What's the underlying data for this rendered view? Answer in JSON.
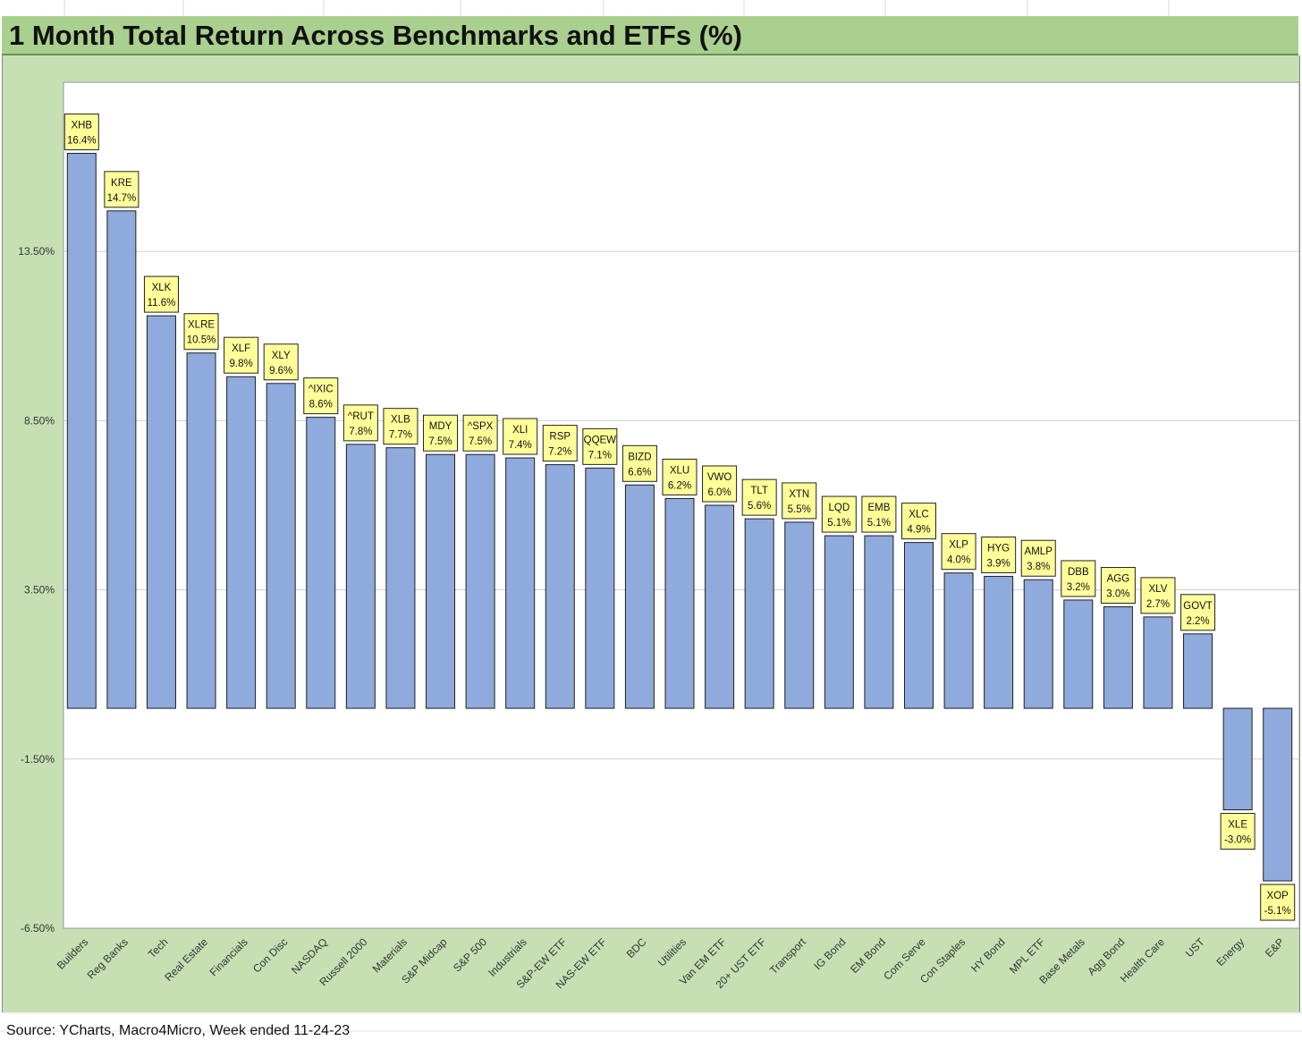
{
  "title": "1 Month Total Return Across Benchmarks and ETFs (%)",
  "source": "Source: YCharts, Macro4Micro, Week ended 11-24-23",
  "colors": {
    "title_band": "#a9d08e",
    "frame": "#c6e0b4",
    "plot_bg": "#ffffff",
    "bar_fill": "#8faadc",
    "bar_stroke": "#1f1f1f",
    "label_fill": "#ffff99"
  },
  "chart_data": {
    "type": "bar",
    "title": "1 Month Total Return Across Benchmarks and ETFs (%)",
    "xlabel": "",
    "ylabel": "",
    "ylim": [
      -6.5,
      18.5
    ],
    "yticks": [
      "13.50%",
      "8.50%",
      "3.50%",
      "-1.50%",
      "-6.50%"
    ],
    "ytick_values": [
      13.5,
      8.5,
      3.5,
      -1.5,
      -6.5
    ],
    "grid": true,
    "categories": [
      "Builders",
      "Reg Banks",
      "Tech",
      "Real Estate",
      "Financials",
      "Con Disc",
      "NASDAQ",
      "Russell 2000",
      "Materials",
      "S&P Midcap",
      "S&P 500",
      "Industrials",
      "S&P-EW ETF",
      "NAS-EW ETF",
      "BDC",
      "Utilities",
      "Van EM ETF",
      "20+ UST ETF",
      "Transport",
      "IG Bond",
      "EM Bond",
      "Com Serve",
      "Con Staples",
      "HY Bond",
      "MPL ETF",
      "Base Metals",
      "Agg Bond",
      "Health Care",
      "UST",
      "Energy",
      "E&P"
    ],
    "tickers": [
      "XHB",
      "KRE",
      "XLK",
      "XLRE",
      "XLF",
      "XLY",
      "^IXIC",
      "^RUT",
      "XLB",
      "MDY",
      "^SPX",
      "XLI",
      "RSP",
      "QQEW",
      "BIZD",
      "XLU",
      "VWO",
      "TLT",
      "XTN",
      "LQD",
      "EMB",
      "XLC",
      "XLP",
      "HYG",
      "AMLP",
      "DBB",
      "AGG",
      "XLV",
      "GOVT",
      "XLE",
      "XOP"
    ],
    "labels": [
      "16.4%",
      "14.7%",
      "11.6%",
      "10.5%",
      "9.8%",
      "9.6%",
      "8.6%",
      "7.8%",
      "7.7%",
      "7.5%",
      "7.5%",
      "7.4%",
      "7.2%",
      "7.1%",
      "6.6%",
      "6.2%",
      "6.0%",
      "5.6%",
      "5.5%",
      "5.1%",
      "5.1%",
      "4.9%",
      "4.0%",
      "3.9%",
      "3.8%",
      "3.2%",
      "3.0%",
      "2.7%",
      "2.2%",
      "-3.0%",
      "-5.1%"
    ],
    "values": [
      16.4,
      14.7,
      11.6,
      10.5,
      9.8,
      9.6,
      8.6,
      7.8,
      7.7,
      7.5,
      7.5,
      7.4,
      7.2,
      7.1,
      6.6,
      6.2,
      6.0,
      5.6,
      5.5,
      5.1,
      5.1,
      4.9,
      4.0,
      3.9,
      3.8,
      3.2,
      3.0,
      2.7,
      2.2,
      -3.0,
      -5.1
    ]
  }
}
